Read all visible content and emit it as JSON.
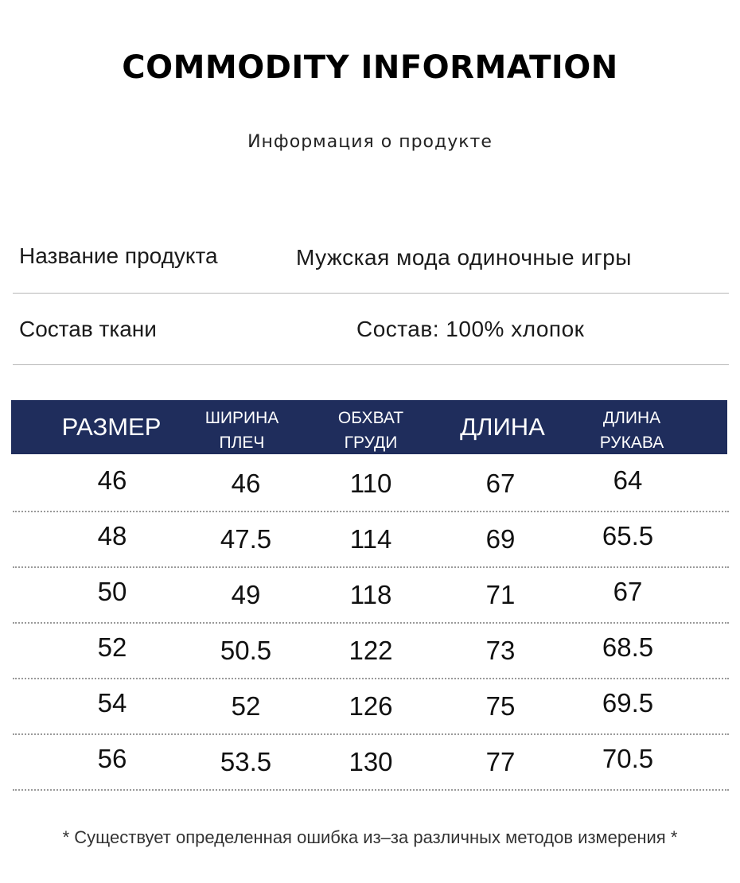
{
  "title": "COMMODITY INFORMATION",
  "subtitle": "Информация о продукте",
  "product_info": [
    {
      "label": "Название продукта",
      "value": "Мужская мода одиночные игры"
    },
    {
      "label": "Состав ткани",
      "value": "Состав: 100% хлопок"
    }
  ],
  "colors": {
    "header_bg": "#1f2d5c",
    "header_text": "#ffffff"
  },
  "size_table": {
    "headers": [
      {
        "lines": [
          "РАЗМЕР"
        ]
      },
      {
        "lines": [
          "ШИРИНА",
          "ПЛЕЧ"
        ]
      },
      {
        "lines": [
          "ОБХВАТ",
          "ГРУДИ"
        ]
      },
      {
        "lines": [
          "ДЛИНА"
        ]
      },
      {
        "lines": [
          "ДЛИНА",
          "РУКАВА"
        ]
      }
    ],
    "rows": [
      [
        "46",
        "46",
        "110",
        "67",
        "64"
      ],
      [
        "48",
        "47.5",
        "114",
        "69",
        "65.5"
      ],
      [
        "50",
        "49",
        "118",
        "71",
        "67"
      ],
      [
        "52",
        "50.5",
        "122",
        "73",
        "68.5"
      ],
      [
        "54",
        "52",
        "126",
        "75",
        "69.5"
      ],
      [
        "56",
        "53.5",
        "130",
        "77",
        "70.5"
      ]
    ]
  },
  "footnote": "* Существует определенная ошибка из–за различных методов измерения *"
}
